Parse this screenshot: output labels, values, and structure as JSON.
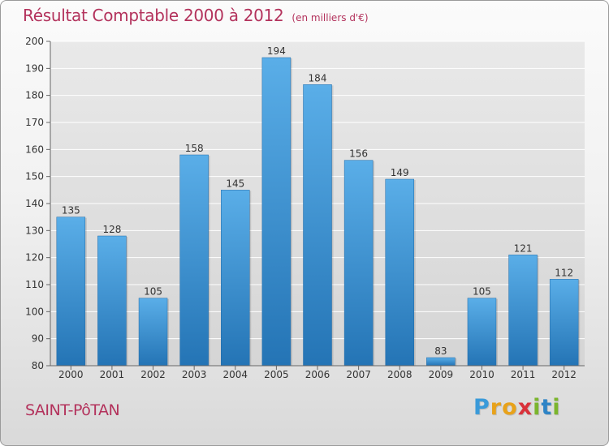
{
  "chart_data": {
    "type": "bar",
    "title": "Résultat Comptable 2000 à 2012",
    "subtitle": "(en milliers d'€)",
    "xlabel": "",
    "ylabel": "",
    "ylim": [
      80,
      200
    ],
    "yticks": [
      80,
      90,
      100,
      110,
      120,
      130,
      140,
      150,
      160,
      170,
      180,
      190,
      200
    ],
    "grid": true,
    "categories": [
      "2000",
      "2001",
      "2002",
      "2003",
      "2004",
      "2005",
      "2006",
      "2007",
      "2008",
      "2009",
      "2010",
      "2011",
      "2012"
    ],
    "values": [
      135,
      128,
      105,
      158,
      145,
      194,
      184,
      156,
      149,
      83,
      105,
      121,
      112
    ]
  },
  "commune": "SAINT-PôTAN",
  "logo": {
    "letters": [
      "P",
      "r",
      "o",
      "x",
      "i",
      "t",
      "i"
    ],
    "colors": [
      "#3a9ad9",
      "#e8a21a",
      "#e8a21a",
      "#d9313a",
      "#7bb52d",
      "#2e84c6",
      "#7bb52d"
    ]
  },
  "colors": {
    "title": "#b3325c",
    "bar_top": "#5aaee8",
    "bar_bottom": "#2474b5",
    "grid": "#ffffff",
    "text": "#333333"
  }
}
